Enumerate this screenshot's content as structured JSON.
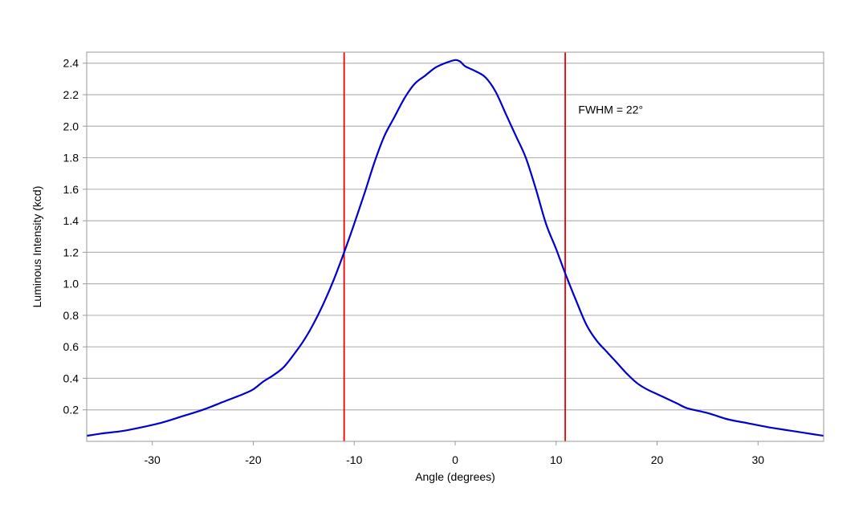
{
  "chart_data": {
    "type": "line",
    "title": "",
    "xlabel": "Angle (degrees)",
    "ylabel": "Luminous Intensity (kcd)",
    "xlim": [
      -36.5,
      36.5
    ],
    "ylim": [
      0,
      2.47
    ],
    "xticks": [
      -30,
      -20,
      -10,
      0,
      10,
      20,
      30
    ],
    "xtick_labels": [
      "-30",
      "-20",
      "-10",
      "0",
      "10",
      "20",
      "30"
    ],
    "yticks": [
      0.2,
      0.4,
      0.6,
      0.8,
      1.0,
      1.2,
      1.4,
      1.6,
      1.8,
      2.0,
      2.2,
      2.4
    ],
    "ytick_labels": [
      "0.2",
      "0.4",
      "0.6",
      "0.8",
      "1.0",
      "1.2",
      "1.4",
      "1.6",
      "1.8",
      "2.0",
      "2.2",
      "2.4"
    ],
    "grid": "horizontal",
    "series": [
      {
        "color": "#0000cc",
        "x": [
          -36.5,
          -35,
          -33,
          -31,
          -29,
          -27,
          -25,
          -23,
          -21,
          -20,
          -19,
          -18,
          -17,
          -16,
          -15,
          -14,
          -13,
          -12,
          -11,
          -10,
          -9,
          -8,
          -7,
          -6,
          -5,
          -4,
          -3,
          -2,
          -1,
          0,
          0.5,
          1,
          2,
          3,
          4,
          5,
          6,
          7,
          8,
          9,
          10,
          11,
          12,
          13,
          14,
          15,
          16,
          17,
          18,
          19,
          20,
          21,
          22,
          23,
          25,
          27,
          29,
          31,
          33,
          35,
          36.5
        ],
        "y": [
          0.035,
          0.05,
          0.065,
          0.09,
          0.12,
          0.16,
          0.2,
          0.25,
          0.3,
          0.33,
          0.38,
          0.42,
          0.47,
          0.55,
          0.64,
          0.75,
          0.88,
          1.03,
          1.2,
          1.38,
          1.57,
          1.77,
          1.94,
          2.06,
          2.18,
          2.27,
          2.32,
          2.37,
          2.4,
          2.42,
          2.41,
          2.38,
          2.35,
          2.31,
          2.22,
          2.08,
          1.94,
          1.8,
          1.6,
          1.38,
          1.22,
          1.05,
          0.89,
          0.74,
          0.64,
          0.57,
          0.5,
          0.43,
          0.37,
          0.33,
          0.3,
          0.27,
          0.24,
          0.21,
          0.18,
          0.14,
          0.115,
          0.09,
          0.07,
          0.05,
          0.035
        ]
      }
    ],
    "vlines": [
      {
        "x": -11,
        "color": "#ee0000"
      },
      {
        "x": 10.9,
        "color": "#ee0000"
      }
    ],
    "annotations": [
      {
        "text": "FWHM = 22°",
        "x": 12.2,
        "y": 2.08
      }
    ]
  }
}
